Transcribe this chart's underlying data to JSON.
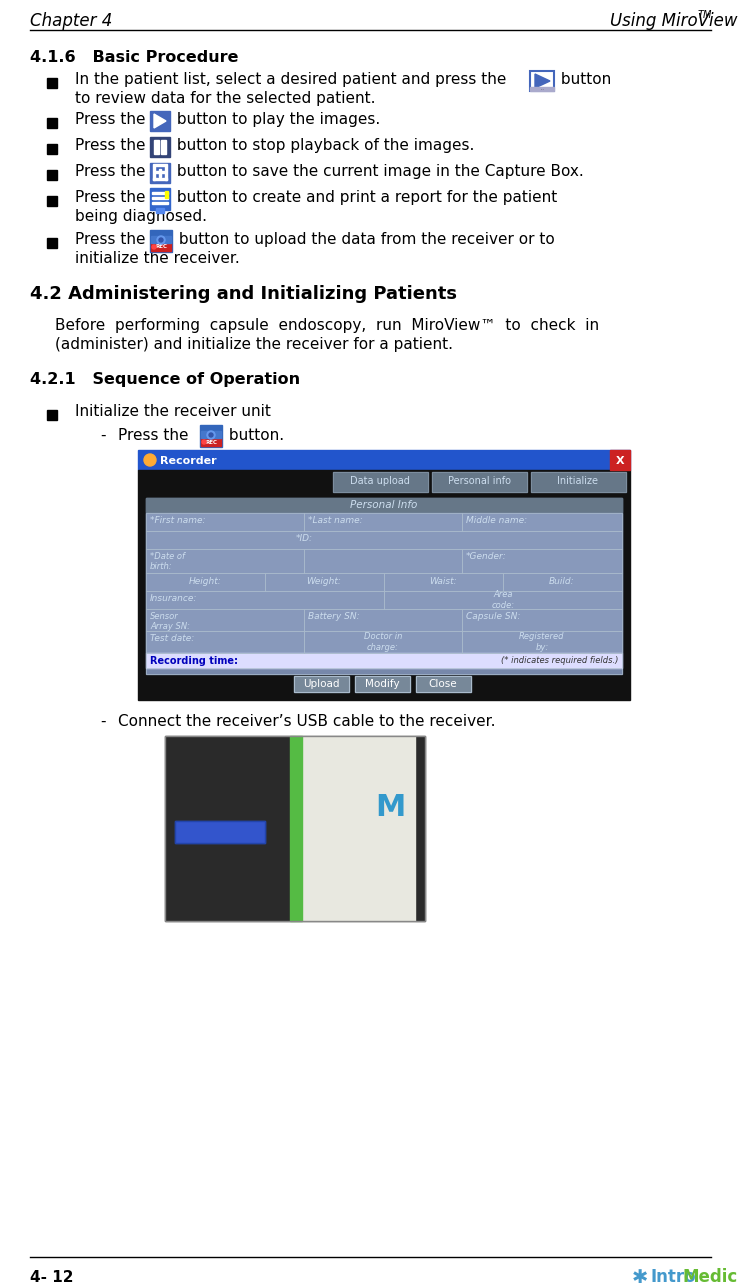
{
  "title_left": "Chapter 4",
  "title_right": "Using MiroView",
  "tm_super": "TM",
  "section_416": "4.1.6   Basic Procedure",
  "section_42": "4.2 Administering and Initializing Patients",
  "para_42_line1": "Before  performing  capsule  endoscopy,  run  MiroView™  to  check  in",
  "para_42_line2": "(administer) and initialize the receiver for a patient.",
  "section_421": "4.2.1   Sequence of Operation",
  "sub_bullet": "Initialize the receiver unit",
  "sub_sub2": "Connect the receiver’s USB cable to the receiver.",
  "footer_left": "4- 12",
  "bg_color": "#ffffff",
  "text_color": "#000000",
  "header_line_color": "#000000",
  "footer_line_color": "#000000",
  "dlg_title_bar_color": "#2255CC",
  "dlg_close_color": "#CC2222",
  "dlg_bg_color": "#111133",
  "dlg_inner_bg": "#8899AA",
  "dlg_tab_bg": "#556677",
  "dlg_tab_active": "#6677AA",
  "dlg_cell_bg": "#8899AA",
  "dlg_cell_border": "#AABBCC",
  "dlg_rec_time_bg": "#EEEEFF",
  "dlg_rec_time_text": "#0000CC",
  "dlg_btn_bg": "#778899",
  "dlg_btn_border": "#AABBCC"
}
